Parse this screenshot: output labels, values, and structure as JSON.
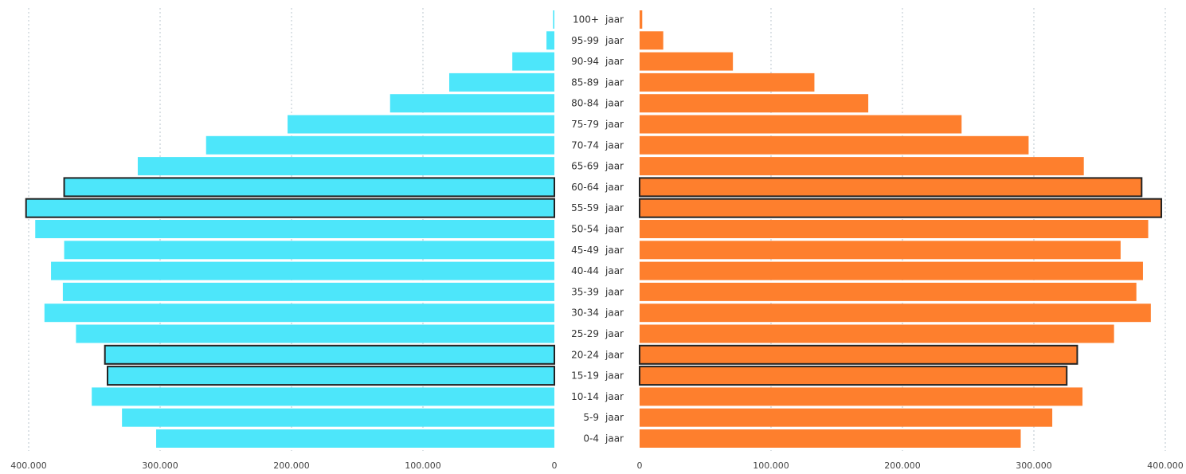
{
  "chart_data": {
    "type": "bar",
    "orientation": "horizontal",
    "layout": "population-pyramid",
    "categories": [
      "0-4",
      "5-9",
      "10-14",
      "15-19",
      "20-24",
      "25-29",
      "30-34",
      "35-39",
      "40-44",
      "45-49",
      "50-54",
      "55-59",
      "60-64",
      "65-69",
      "70-74",
      "75-79",
      "80-84",
      "85-89",
      "90-94",
      "95-99",
      "100+"
    ],
    "category_suffix": "jaar",
    "series": [
      {
        "side": "left",
        "color": "#4de6fa",
        "values": [
          303000,
          329000,
          352000,
          340000,
          342000,
          364000,
          388000,
          374000,
          383000,
          373000,
          395000,
          402000,
          373000,
          317000,
          265000,
          203000,
          125000,
          80000,
          32000,
          6000,
          1000
        ],
        "highlighted": [
          false,
          false,
          false,
          true,
          true,
          false,
          false,
          false,
          false,
          false,
          false,
          true,
          true,
          false,
          false,
          false,
          false,
          false,
          false,
          false,
          false
        ]
      },
      {
        "side": "right",
        "color": "#fe7f2d",
        "values": [
          290000,
          314000,
          337000,
          325000,
          333000,
          361000,
          389000,
          378000,
          383000,
          366000,
          387000,
          397000,
          382000,
          338000,
          296000,
          245000,
          174000,
          133000,
          71000,
          18000,
          2000
        ],
        "highlighted": [
          false,
          false,
          false,
          true,
          true,
          false,
          false,
          false,
          false,
          false,
          false,
          true,
          true,
          false,
          false,
          false,
          false,
          false,
          false,
          false,
          false
        ]
      }
    ],
    "left_axis": {
      "range": [
        0,
        400000
      ],
      "ticks": [
        400000,
        300000,
        200000,
        100000,
        0
      ],
      "tick_labels": [
        "400.000",
        "300.000",
        "200.000",
        "100.000",
        "0"
      ]
    },
    "right_axis": {
      "range": [
        0,
        400000
      ],
      "ticks": [
        0,
        100000,
        200000,
        300000,
        400000
      ],
      "tick_labels": [
        "0",
        "100.000",
        "200.000",
        "300.000",
        "400.000"
      ]
    },
    "grid": true,
    "grid_color": "#b8c4cc",
    "highlight_outline_color": "#222222",
    "label_color": "#333333"
  }
}
